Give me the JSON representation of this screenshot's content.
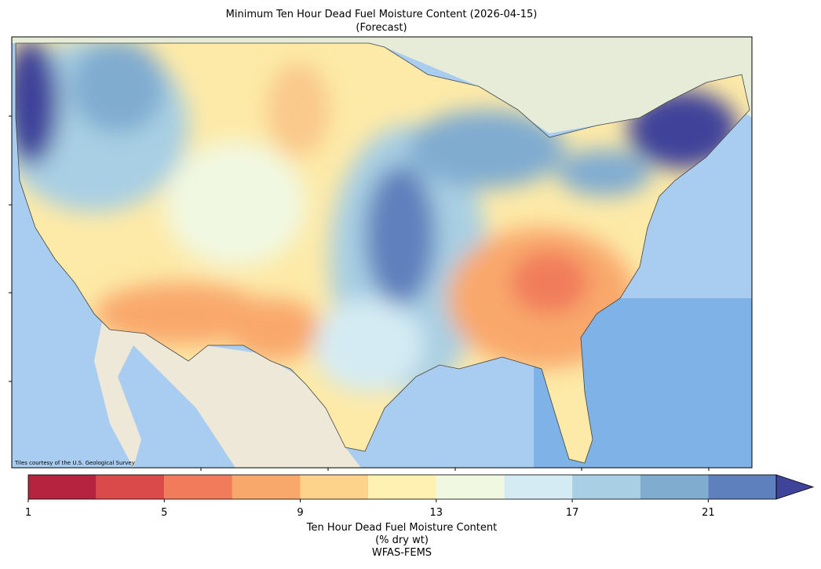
{
  "map": {
    "title": "Minimum Ten Hour Dead Fuel Moisture Content (2026-04-15)",
    "subtitle": "(Forecast)",
    "attribution": "Tiles courtesy of the U.S. Geological Survey"
  },
  "colorbar": {
    "bounds": [
      1,
      3,
      5,
      7,
      9,
      11,
      13,
      15,
      17,
      19,
      21,
      23
    ],
    "colors": [
      "#b5233f",
      "#da4a4a",
      "#f17b5b",
      "#f9a86c",
      "#fdd38b",
      "#fef1b2",
      "#f1f8e1",
      "#d4ebf3",
      "#a8cfe3",
      "#80acd0",
      "#5e80bc"
    ],
    "extend": "max",
    "extend_color": "#40439a",
    "lim": [
      1,
      23
    ],
    "ticks": [
      1,
      5,
      9,
      13,
      17,
      21
    ],
    "label": [
      "Ten Hour Dead Fuel Moisture Content",
      "(% dry wt)",
      "WFAS-FEMS"
    ]
  }
}
